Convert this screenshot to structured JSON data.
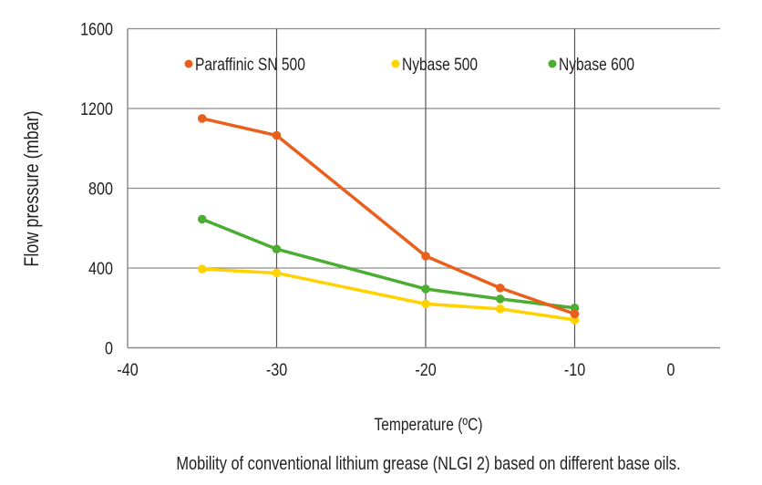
{
  "chart_data": {
    "type": "line",
    "title": "",
    "caption": "Mobility of conventional lithium grease (NLGI 2) based on different base oils.",
    "xlabel": "Temperature (ºC)",
    "ylabel": "Flow pressure (mbar)",
    "xlim": [
      -40,
      0
    ],
    "ylim": [
      0,
      1600
    ],
    "xticks": [
      -40,
      -30,
      -20,
      -10,
      0
    ],
    "yticks": [
      0,
      400,
      800,
      1200,
      1600
    ],
    "xtick_labels": [
      "-40",
      "-30",
      "-20",
      "-10",
      "0"
    ],
    "ytick_labels": [
      "0",
      "400",
      "800",
      "1200",
      "1600"
    ],
    "grid": true,
    "legend_position": "top",
    "x": [
      -35,
      -30,
      -20,
      -15,
      -10
    ],
    "series": [
      {
        "name": "Paraffinic SN 500",
        "color": "#E8601C",
        "values": [
          1150,
          1065,
          460,
          300,
          170
        ]
      },
      {
        "name": "Nybase 500",
        "color": "#FFD200",
        "values": [
          395,
          375,
          220,
          195,
          140
        ]
      },
      {
        "name": "Nybase 600",
        "color": "#4BAE32",
        "values": [
          645,
          495,
          295,
          245,
          200
        ]
      }
    ]
  }
}
